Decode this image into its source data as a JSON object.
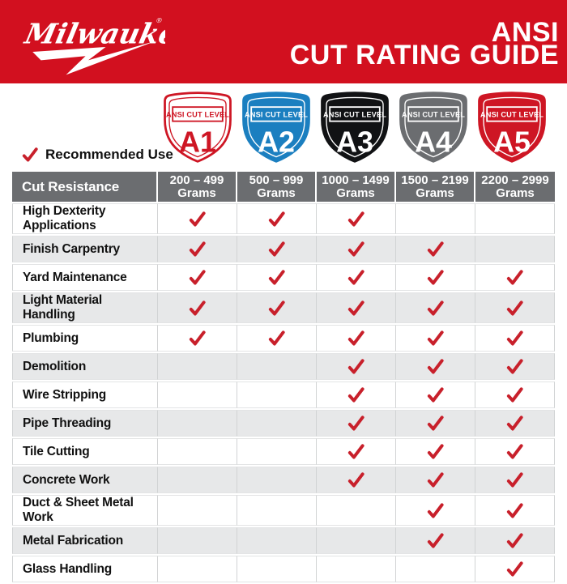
{
  "header": {
    "brand": "Milwaukee",
    "registered_mark": "®",
    "title_line1": "ANSI",
    "title_line2": "CUT RATING GUIDE"
  },
  "legend": {
    "label": "Recommended Use"
  },
  "levels": [
    {
      "code": "A1",
      "banner": "ANSI CUT LEVEL",
      "range": "200 – 499",
      "unit": "Grams",
      "shield_fill": "#FFFFFF",
      "shield_border": "#CE1624",
      "ink": "#CE1624"
    },
    {
      "code": "A2",
      "banner": "ANSI CUT LEVEL",
      "range": "500 – 999",
      "unit": "Grams",
      "shield_fill": "#1B7FC0",
      "shield_border": "#1B7FC0",
      "ink": "#FFFFFF"
    },
    {
      "code": "A3",
      "banner": "ANSI CUT LEVEL",
      "range": "1000 – 1499",
      "unit": "Grams",
      "shield_fill": "#111214",
      "shield_border": "#111214",
      "ink": "#FFFFFF"
    },
    {
      "code": "A4",
      "banner": "ANSI CUT LEVEL",
      "range": "1500 – 2199",
      "unit": "Grams",
      "shield_fill": "#6B6D70",
      "shield_border": "#6B6D70",
      "ink": "#FFFFFF"
    },
    {
      "code": "A5",
      "banner": "ANSI CUT LEVEL",
      "range": "2200 – 2999",
      "unit": "Grams",
      "shield_fill": "#CE1624",
      "shield_border": "#CE1624",
      "ink": "#FFFFFF"
    }
  ],
  "table": {
    "corner_header": "Cut Resistance",
    "rows": [
      {
        "label": "High Dexterity Applications",
        "checks": [
          true,
          true,
          true,
          false,
          false
        ]
      },
      {
        "label": "Finish Carpentry",
        "checks": [
          true,
          true,
          true,
          true,
          false
        ]
      },
      {
        "label": "Yard Maintenance",
        "checks": [
          true,
          true,
          true,
          true,
          true
        ]
      },
      {
        "label": "Light Material Handling",
        "checks": [
          true,
          true,
          true,
          true,
          true
        ]
      },
      {
        "label": "Plumbing",
        "checks": [
          true,
          true,
          true,
          true,
          true
        ]
      },
      {
        "label": "Demolition",
        "checks": [
          false,
          false,
          true,
          true,
          true
        ]
      },
      {
        "label": "Wire Stripping",
        "checks": [
          false,
          false,
          true,
          true,
          true
        ]
      },
      {
        "label": "Pipe Threading",
        "checks": [
          false,
          false,
          true,
          true,
          true
        ]
      },
      {
        "label": "Tile Cutting",
        "checks": [
          false,
          false,
          true,
          true,
          true
        ]
      },
      {
        "label": "Concrete Work",
        "checks": [
          false,
          false,
          true,
          true,
          true
        ]
      },
      {
        "label": "Duct & Sheet Metal Work",
        "checks": [
          false,
          false,
          false,
          true,
          true
        ]
      },
      {
        "label": "Metal Fabrication",
        "checks": [
          false,
          false,
          false,
          true,
          true
        ]
      },
      {
        "label": "Glass Handling",
        "checks": [
          false,
          false,
          false,
          false,
          true
        ]
      }
    ]
  },
  "colors": {
    "banner_red": "#D2101F",
    "check_red": "#C8202B",
    "header_gray": "#6B6D70",
    "row_alt_gray": "#E7E8E9",
    "cell_border": "#D1D3D4",
    "text_dark": "#111111"
  },
  "chart_data": {
    "type": "table",
    "title": "ANSI CUT RATING GUIDE",
    "columns": [
      "Cut Resistance",
      "200 – 499 Grams",
      "500 – 999 Grams",
      "1000 – 1499 Grams",
      "1500 – 2199 Grams",
      "2200 – 2999 Grams"
    ],
    "column_levels": [
      "A1",
      "A2",
      "A3",
      "A4",
      "A5"
    ],
    "legend": "Checkmark = Recommended Use",
    "rows": [
      {
        "application": "High Dexterity Applications",
        "recommended": [
          "A1",
          "A2",
          "A3"
        ]
      },
      {
        "application": "Finish Carpentry",
        "recommended": [
          "A1",
          "A2",
          "A3",
          "A4"
        ]
      },
      {
        "application": "Yard Maintenance",
        "recommended": [
          "A1",
          "A2",
          "A3",
          "A4",
          "A5"
        ]
      },
      {
        "application": "Light Material Handling",
        "recommended": [
          "A1",
          "A2",
          "A3",
          "A4",
          "A5"
        ]
      },
      {
        "application": "Plumbing",
        "recommended": [
          "A1",
          "A2",
          "A3",
          "A4",
          "A5"
        ]
      },
      {
        "application": "Demolition",
        "recommended": [
          "A3",
          "A4",
          "A5"
        ]
      },
      {
        "application": "Wire Stripping",
        "recommended": [
          "A3",
          "A4",
          "A5"
        ]
      },
      {
        "application": "Pipe Threading",
        "recommended": [
          "A3",
          "A4",
          "A5"
        ]
      },
      {
        "application": "Tile Cutting",
        "recommended": [
          "A3",
          "A4",
          "A5"
        ]
      },
      {
        "application": "Concrete Work",
        "recommended": [
          "A3",
          "A4",
          "A5"
        ]
      },
      {
        "application": "Duct & Sheet Metal Work",
        "recommended": [
          "A4",
          "A5"
        ]
      },
      {
        "application": "Metal Fabrication",
        "recommended": [
          "A4",
          "A5"
        ]
      },
      {
        "application": "Glass Handling",
        "recommended": [
          "A5"
        ]
      }
    ]
  }
}
